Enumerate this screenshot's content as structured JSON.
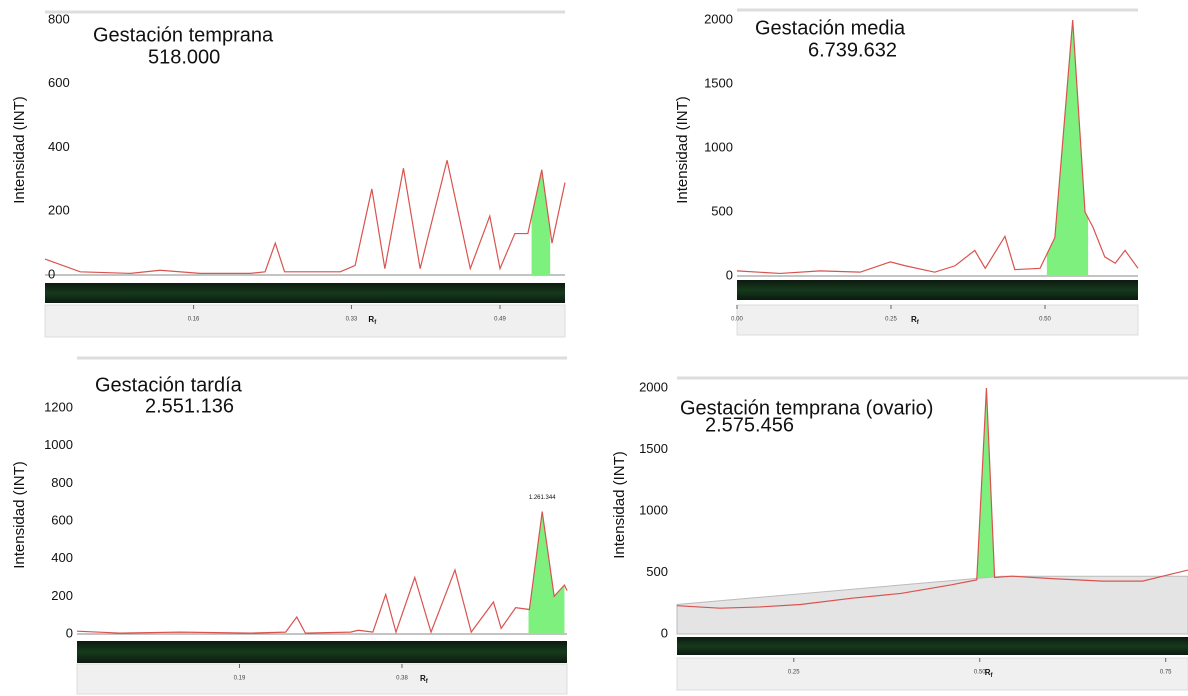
{
  "chart_data": [
    {
      "type": "line",
      "title": "Gestación temprana",
      "subtitle": "518.000",
      "y_label": "Intensidad (INT)",
      "x_label": "R",
      "x_label_sub": "f",
      "xlim": [
        0,
        0.56
      ],
      "ylim": [
        0,
        800
      ],
      "yticks": [
        0,
        200,
        400,
        600,
        800
      ],
      "xticks": [
        0.16,
        0.33,
        0.49
      ],
      "color": "#d9534f",
      "fill_color": "#7ef07e",
      "fill_range": [
        0.524,
        0.544
      ],
      "x": [
        0,
        0.038,
        0.092,
        0.124,
        0.167,
        0.221,
        0.237,
        0.248,
        0.258,
        0.318,
        0.334,
        0.352,
        0.366,
        0.386,
        0.404,
        0.433,
        0.458,
        0.479,
        0.49,
        0.506,
        0.52,
        0.535,
        0.546,
        0.56
      ],
      "values": [
        50,
        10,
        5,
        15,
        5,
        5,
        10,
        100,
        10,
        10,
        30,
        270,
        20,
        335,
        20,
        360,
        20,
        185,
        20,
        130,
        130,
        330,
        100,
        290
      ]
    },
    {
      "type": "line",
      "title": "Gestación media",
      "subtitle": "6.739.632",
      "y_label": "Intensidad (INT)",
      "x_label": "R",
      "x_label_sub": "f",
      "xlim": [
        0,
        0.651
      ],
      "ylim": [
        0,
        2000
      ],
      "yticks": [
        0,
        500,
        1000,
        1500,
        2000
      ],
      "xticks": [
        {
          "value": 0,
          "label": "0.00"
        },
        0.25,
        {
          "value": 0.5,
          "label": "0.50"
        }
      ],
      "color": "#d9534f",
      "fill_color": "#7ef07e",
      "fill_range": [
        0.503,
        0.57
      ],
      "x": [
        0,
        0.07,
        0.135,
        0.2,
        0.249,
        0.273,
        0.321,
        0.354,
        0.386,
        0.403,
        0.435,
        0.451,
        0.492,
        0.516,
        0.545,
        0.565,
        0.578,
        0.597,
        0.614,
        0.63,
        0.651
      ],
      "values": [
        40,
        20,
        40,
        30,
        110,
        80,
        30,
        80,
        200,
        60,
        310,
        50,
        60,
        300,
        2000,
        500,
        380,
        150,
        100,
        200,
        60
      ]
    },
    {
      "type": "line",
      "title": "Gestación tardía",
      "subtitle": "2.551.136",
      "y_label": "Intensidad (INT)",
      "x_label": "R",
      "x_label_sub": "f",
      "peak_label": "1.261.344",
      "xlim": [
        0,
        0.573
      ],
      "ylim": [
        0,
        1200
      ],
      "yticks": [
        0,
        200,
        400,
        600,
        800,
        1000,
        1200
      ],
      "xticks": [
        0.19,
        0.38
      ],
      "color": "#d9534f",
      "fill_color": "#7ef07e",
      "fill_range": [
        0.528,
        0.57
      ],
      "x": [
        0,
        0.05,
        0.121,
        0.203,
        0.244,
        0.257,
        0.267,
        0.32,
        0.329,
        0.346,
        0.361,
        0.373,
        0.395,
        0.414,
        0.442,
        0.461,
        0.487,
        0.496,
        0.513,
        0.529,
        0.544,
        0.558,
        0.57,
        0.573
      ],
      "values": [
        15,
        5,
        10,
        5,
        10,
        90,
        5,
        10,
        20,
        10,
        210,
        10,
        300,
        10,
        340,
        10,
        170,
        30,
        140,
        130,
        650,
        200,
        260,
        230
      ]
    },
    {
      "type": "line",
      "title": "Gestación temprana (ovario)",
      "subtitle": "2.575.456",
      "y_label": "Intensidad (INT)",
      "x_label": "R",
      "x_label_sub": "f",
      "xlim": [
        0.093,
        0.78
      ],
      "ylim": [
        0,
        2000
      ],
      "yticks": [
        0,
        500,
        1000,
        1500,
        2000
      ],
      "xticks": [
        0.25,
        {
          "value": 0.5,
          "label": "0.50"
        },
        0.75
      ],
      "color": "#d9534f",
      "fill_color": "#7ef07e",
      "fill_range": [
        0.496,
        0.53
      ],
      "baseline_color": "#e4e4e4",
      "x": [
        0.093,
        0.151,
        0.205,
        0.259,
        0.327,
        0.394,
        0.462,
        0.496,
        0.509,
        0.52,
        0.543,
        0.597,
        0.665,
        0.719,
        0.78
      ],
      "values": [
        230,
        210,
        220,
        240,
        290,
        330,
        400,
        440,
        2000,
        460,
        470,
        450,
        430,
        430,
        520
      ],
      "baseline_x": [
        0.093,
        0.53,
        0.78
      ],
      "baseline": [
        240,
        470,
        470
      ]
    }
  ]
}
